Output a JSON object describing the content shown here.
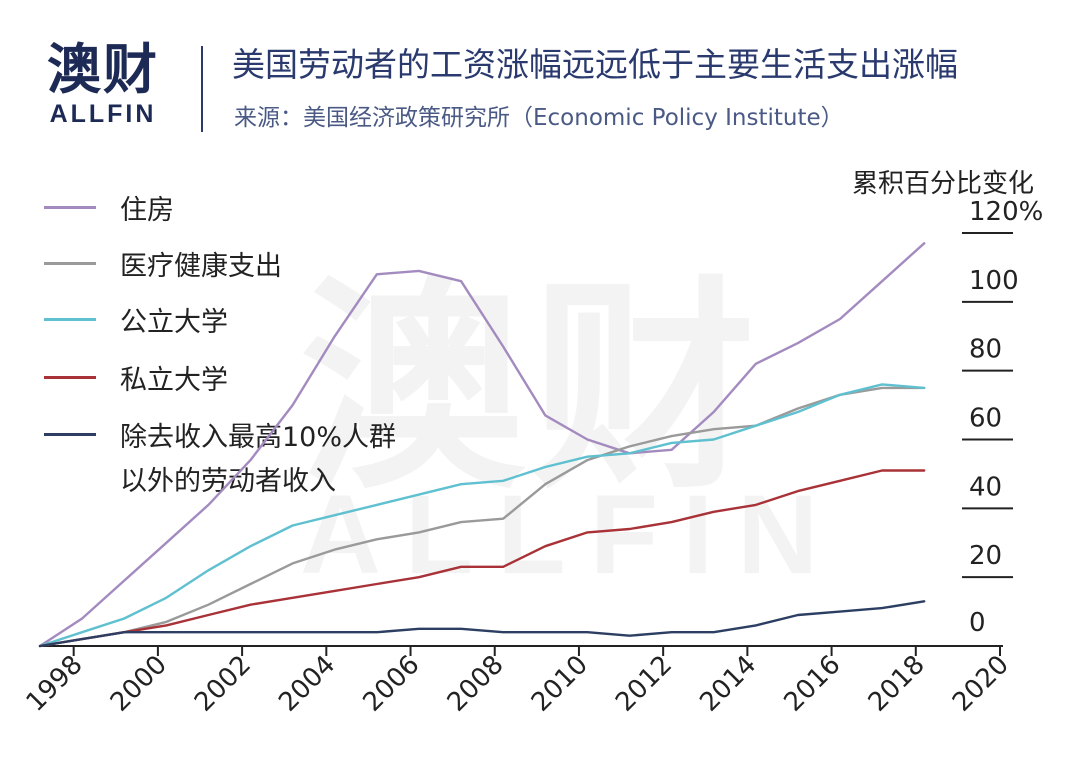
{
  "header": {
    "logo_main": "澳财",
    "logo_sub": "ALLFIN",
    "title": "美国劳动者的工资涨幅远远低于主要生活支出涨幅",
    "subtitle": "来源：美国经济政策研究所（Economic Policy Institute）"
  },
  "watermark": {
    "main": "澳财",
    "sub": "ALLFIN"
  },
  "legend": {
    "housing": "住房",
    "health": "医疗健康支出",
    "public_uni": "公立大学",
    "private_uni": "私立大学",
    "wages_line1": "除去收入最高10%人群",
    "wages_line2": "以外的劳动者收入"
  },
  "chart_data": {
    "type": "line",
    "ylabel": "累积百分比变化",
    "x_ticks": [
      "1998",
      "2000",
      "2002",
      "2004",
      "2006",
      "2008",
      "2010",
      "2012",
      "2014",
      "2016",
      "2018",
      "2020"
    ],
    "y_ticks": [
      "0",
      "20",
      "40",
      "60",
      "80",
      "100",
      "120%"
    ],
    "xlim": [
      1997.2,
      2020
    ],
    "ylim": [
      0,
      120
    ],
    "colors": {
      "housing": "#a48bbf",
      "health": "#9a9a9a",
      "public_uni": "#5fc0d0",
      "private_uni": "#a83237",
      "wages": "#2c3f63"
    },
    "series": [
      {
        "name": "住房",
        "color": "#a48bbf",
        "x": [
          1997.2,
          1998.2,
          1999.2,
          2000.2,
          2001.2,
          2002.2,
          2003.2,
          2004.2,
          2005.2,
          2006.2,
          2007.2,
          2008.2,
          2009.2,
          2010.2,
          2011.2,
          2012.2,
          2013.2,
          2014.2,
          2015.2,
          2016.2,
          2017.2,
          2018.2
        ],
        "y": [
          0,
          8,
          19,
          30,
          41,
          54,
          70,
          90,
          108,
          109,
          106,
          87,
          67,
          60,
          56,
          57,
          68,
          82,
          88,
          95,
          106,
          117
        ]
      },
      {
        "name": "医疗健康支出",
        "color": "#9a9a9a",
        "x": [
          1997.2,
          1998.2,
          1999.2,
          2000.2,
          2001.2,
          2002.2,
          2003.2,
          2004.2,
          2005.2,
          2006.2,
          2007.2,
          2008.2,
          2009.2,
          2010.2,
          2011.2,
          2012.2,
          2013.2,
          2014.2,
          2015.2,
          2016.2,
          2017.2,
          2018.2
        ],
        "y": [
          0,
          2,
          4,
          7,
          12,
          18,
          24,
          28,
          31,
          33,
          36,
          37,
          47,
          54,
          58,
          61,
          63,
          64,
          69,
          73,
          75,
          75
        ]
      },
      {
        "name": "公立大学",
        "color": "#5fc0d0",
        "x": [
          1997.2,
          1998.2,
          1999.2,
          2000.2,
          2001.2,
          2002.2,
          2003.2,
          2004.2,
          2005.2,
          2006.2,
          2007.2,
          2008.2,
          2009.2,
          2010.2,
          2011.2,
          2012.2,
          2013.2,
          2014.2,
          2015.2,
          2016.2,
          2017.2,
          2018.2
        ],
        "y": [
          0,
          4,
          8,
          14,
          22,
          29,
          35,
          38,
          41,
          44,
          47,
          48,
          52,
          55,
          56,
          59,
          60,
          64,
          68,
          73,
          76,
          75
        ]
      },
      {
        "name": "私立大学",
        "color": "#a83237",
        "x": [
          1997.2,
          1998.2,
          1999.2,
          2000.2,
          2001.2,
          2002.2,
          2003.2,
          2004.2,
          2005.2,
          2006.2,
          2007.2,
          2008.2,
          2009.2,
          2010.2,
          2011.2,
          2012.2,
          2013.2,
          2014.2,
          2015.2,
          2016.2,
          2017.2,
          2018.2
        ],
        "y": [
          0,
          2,
          4,
          6,
          9,
          12,
          14,
          16,
          18,
          20,
          23,
          23,
          29,
          33,
          34,
          36,
          39,
          41,
          45,
          48,
          51,
          51
        ]
      },
      {
        "name": "除去收入最高10%人群以外的劳动者收入",
        "color": "#2c3f63",
        "x": [
          1997.2,
          1998.2,
          1999.2,
          2000.2,
          2001.2,
          2002.2,
          2003.2,
          2004.2,
          2005.2,
          2006.2,
          2007.2,
          2008.2,
          2009.2,
          2010.2,
          2011.2,
          2012.2,
          2013.2,
          2014.2,
          2015.2,
          2016.2,
          2017.2,
          2018.2
        ],
        "y": [
          0,
          2,
          4,
          4,
          4,
          4,
          4,
          4,
          4,
          5,
          5,
          4,
          4,
          4,
          3,
          4,
          4,
          6,
          9,
          10,
          11,
          13
        ]
      }
    ]
  }
}
